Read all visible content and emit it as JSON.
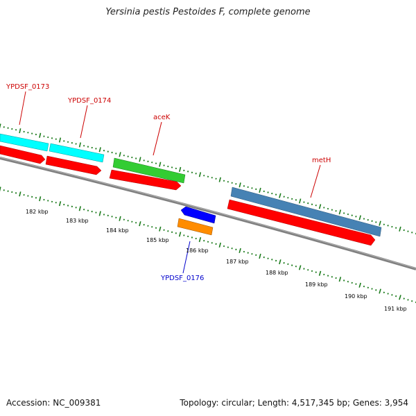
{
  "title": "Yersinia pestis Pestoides F, complete genome",
  "footer": {
    "accession": "Accession: NC_009381",
    "summary": "Topology: circular; Length: 4,517,345 bp; Genes: 3,954"
  },
  "colors": {
    "backbone": "#808080",
    "tick": "#1a7a1a",
    "forward_label": "#cc0000",
    "reverse_label": "#0000cc",
    "cds": "#ff0000",
    "gene_cyan": "#00ffff",
    "gene_green": "#33cc33",
    "gene_steelblue": "#4682b4",
    "gene_blue": "#0000ff",
    "gene_orange": "#ff8c00"
  },
  "scale": {
    "labels": [
      "182 kbp",
      "183 kbp",
      "184 kbp",
      "185 kbp",
      "186 kbp",
      "187 kbp",
      "188 kbp",
      "189 kbp",
      "190 kbp",
      "191 kbp"
    ]
  },
  "genes": [
    {
      "name": "YPDSF_0173",
      "strand": "forward",
      "color": "#00ffff"
    },
    {
      "name": "YPDSF_0174",
      "strand": "forward",
      "color": "#00ffff"
    },
    {
      "name": "aceK",
      "strand": "forward",
      "color": "#33cc33"
    },
    {
      "name": "metH",
      "strand": "forward",
      "color": "#4682b4"
    },
    {
      "name": "YPDSF_0176",
      "strand": "reverse",
      "color": "#0000ff"
    }
  ]
}
